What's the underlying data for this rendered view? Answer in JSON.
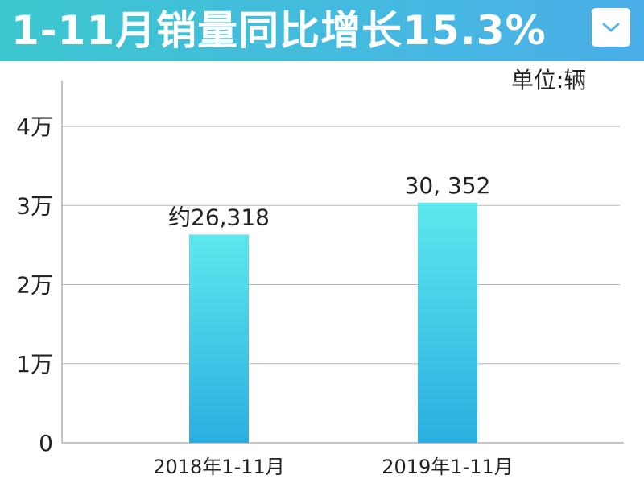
{
  "header": {
    "title": "1-11月销量同比增长15.3%",
    "dropdown_icon": "chevron-down-icon"
  },
  "unit_label": "单位:辆",
  "colors": {
    "header_gradient": [
      "#3cc7cf",
      "#4aaee8"
    ],
    "bar_top": "#5de8ee",
    "bar_bottom": "#2aaee0",
    "grid": "#b5b5b5",
    "axis": "#888888"
  },
  "chart_data": {
    "type": "bar",
    "categories": [
      "2018年1-11月",
      "2019年1-11月"
    ],
    "values": [
      26318,
      30352
    ],
    "data_labels": [
      "约26,318",
      "30, 352"
    ],
    "ylim": [
      0,
      40000
    ],
    "yticks": [
      0,
      10000,
      20000,
      30000,
      40000
    ],
    "ytick_labels": [
      "0",
      "1万",
      "2万",
      "3万",
      "4万"
    ],
    "grid": true
  }
}
